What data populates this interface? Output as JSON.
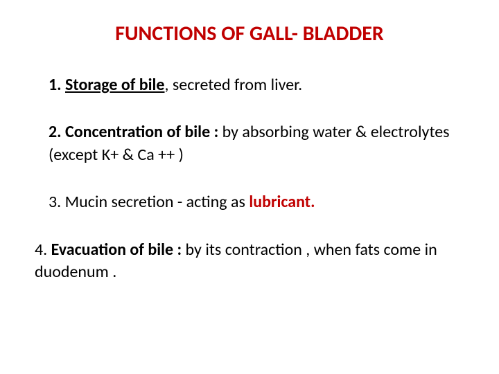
{
  "title": {
    "text": "FUNCTIONS OF GALL- BLADDER",
    "color": "#c00000",
    "fontsize": 30
  },
  "body_fontsize": 24,
  "items": [
    {
      "num": "1.",
      "lead_bold": "Storage of bile",
      "tail": ", secreted from liver.",
      "underline_lead": true
    },
    {
      "num": "2.",
      "lead_bold": "Concentration of bile  : ",
      "tail": " by absorbing  water     &  electrolytes (except K+ & Ca ++ )",
      "underline_lead": false
    },
    {
      "num": "3.",
      "pre": "  Mucin secretion  - acting as ",
      "accent": "lubricant.",
      "accent_color": "#c00000"
    },
    {
      "num": "4.",
      "lead_bold": "  Evacuation of bile :",
      "tail": " by its contraction , when fats come in duodenum  ."
    }
  ]
}
